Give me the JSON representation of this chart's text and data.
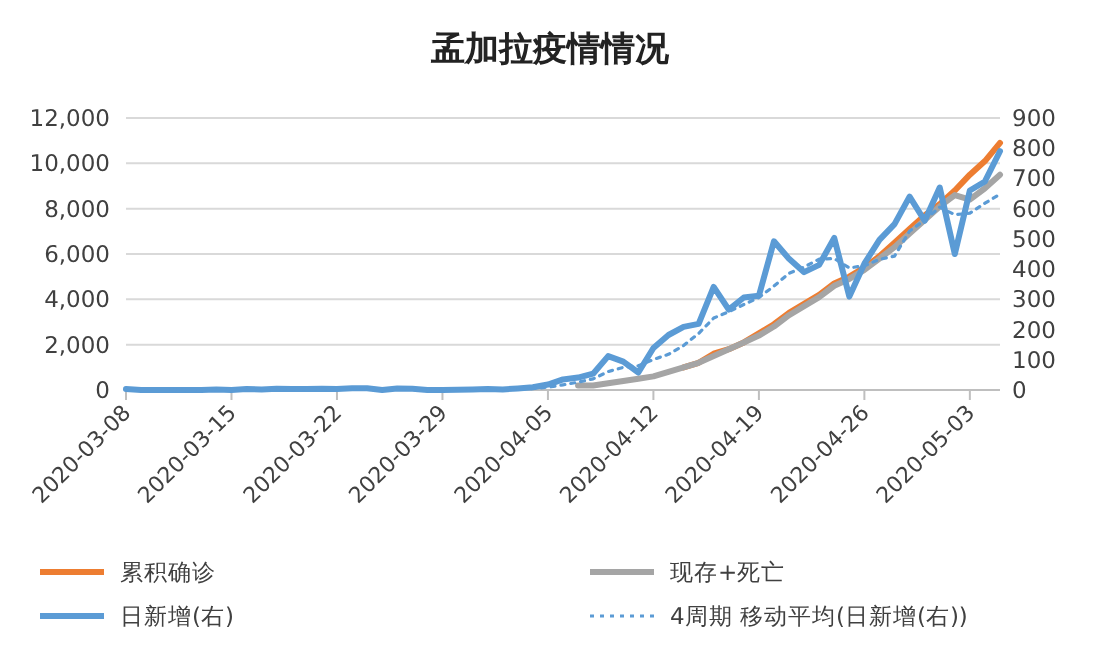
{
  "chart_data": {
    "type": "line",
    "title": "孟加拉疫情情况",
    "x": [
      "2020-03-08",
      "2020-03-09",
      "2020-03-10",
      "2020-03-11",
      "2020-03-12",
      "2020-03-13",
      "2020-03-14",
      "2020-03-15",
      "2020-03-16",
      "2020-03-17",
      "2020-03-18",
      "2020-03-19",
      "2020-03-20",
      "2020-03-21",
      "2020-03-22",
      "2020-03-23",
      "2020-03-24",
      "2020-03-25",
      "2020-03-26",
      "2020-03-27",
      "2020-03-28",
      "2020-03-29",
      "2020-03-30",
      "2020-03-31",
      "2020-04-01",
      "2020-04-02",
      "2020-04-03",
      "2020-04-04",
      "2020-04-05",
      "2020-04-06",
      "2020-04-07",
      "2020-04-08",
      "2020-04-09",
      "2020-04-10",
      "2020-04-11",
      "2020-04-12",
      "2020-04-13",
      "2020-04-14",
      "2020-04-15",
      "2020-04-16",
      "2020-04-17",
      "2020-04-18",
      "2020-04-19",
      "2020-04-20",
      "2020-04-21",
      "2020-04-22",
      "2020-04-23",
      "2020-04-24",
      "2020-04-25",
      "2020-04-26",
      "2020-04-27",
      "2020-04-28",
      "2020-04-29",
      "2020-04-30",
      "2020-05-01",
      "2020-05-02",
      "2020-05-03",
      "2020-05-04",
      "2020-05-05"
    ],
    "series": [
      {
        "name": "累积确诊",
        "color": "#ed7d31",
        "values": [
          null,
          null,
          null,
          null,
          null,
          null,
          null,
          null,
          null,
          null,
          null,
          null,
          null,
          null,
          null,
          null,
          null,
          null,
          null,
          null,
          null,
          null,
          null,
          null,
          null,
          null,
          null,
          null,
          null,
          null,
          null,
          null,
          null,
          null,
          null,
          null,
          null,
          1000,
          1200,
          1600,
          1800,
          2100,
          2500,
          2900,
          3400,
          3800,
          4200,
          4700,
          5000,
          5400,
          5900,
          6500,
          7100,
          7700,
          8200,
          8800,
          9500,
          10100,
          10900
        ]
      },
      {
        "name": "现存+死亡",
        "color": "#a5a5a5",
        "values": [
          null,
          null,
          null,
          null,
          null,
          null,
          null,
          null,
          null,
          null,
          null,
          null,
          null,
          null,
          null,
          null,
          null,
          null,
          null,
          null,
          null,
          null,
          null,
          null,
          null,
          null,
          null,
          null,
          null,
          null,
          200,
          200,
          300,
          400,
          500,
          600,
          800,
          1000,
          1200,
          1500,
          1800,
          2100,
          2400,
          2800,
          3300,
          3700,
          4100,
          4600,
          4900,
          5300,
          5800,
          6300,
          6900,
          7500,
          8100,
          8600,
          8400,
          8900,
          9500
        ]
      },
      {
        "name": "日新增(右)",
        "color": "#5b9bd5",
        "axis": "y2",
        "values": [
          3,
          0,
          0,
          0,
          0,
          0,
          2,
          0,
          3,
          2,
          4,
          3,
          3,
          4,
          3,
          6,
          6,
          0,
          5,
          4,
          0,
          0,
          1,
          2,
          3,
          2,
          5,
          9,
          18,
          35,
          41,
          54,
          112,
          94,
          58,
          139,
          182,
          209,
          219,
          341,
          266,
          306,
          312,
          492,
          434,
          390,
          414,
          503,
          309,
          418,
          497,
          549,
          640,
          560,
          670,
          450,
          660,
          690,
          790
        ]
      },
      {
        "name": "4周期 移动平均(日新增(右))",
        "color": "#5b9bd5",
        "axis": "y2",
        "line_style": "dotted",
        "values": [
          null,
          null,
          null,
          1,
          0,
          0,
          1,
          1,
          1,
          2,
          2,
          3,
          3,
          4,
          3,
          4,
          5,
          4,
          4,
          4,
          2,
          2,
          1,
          1,
          2,
          2,
          3,
          5,
          9,
          17,
          26,
          37,
          61,
          75,
          80,
          101,
          118,
          147,
          187,
          238,
          259,
          283,
          306,
          344,
          386,
          407,
          433,
          435,
          404,
          411,
          432,
          443,
          526,
          562,
          605,
          580,
          585,
          618,
          648
        ]
      }
    ],
    "xlim": [
      "2020-03-08",
      "2020-05-05"
    ],
    "xticks": [
      "2020-03-08",
      "2020-03-15",
      "2020-03-22",
      "2020-03-29",
      "2020-04-05",
      "2020-04-12",
      "2020-04-19",
      "2020-04-26",
      "2020-05-03"
    ],
    "ylim": [
      0,
      12000
    ],
    "yticks": [
      {
        "value": 0,
        "label": "0"
      },
      {
        "value": 2000,
        "label": "2,000"
      },
      {
        "value": 4000,
        "label": "4,000"
      },
      {
        "value": 6000,
        "label": "6,000"
      },
      {
        "value": 8000,
        "label": "8,000"
      },
      {
        "value": 10000,
        "label": "10,000"
      },
      {
        "value": 12000,
        "label": "12,000"
      }
    ],
    "y2lim": [
      0,
      900
    ],
    "y2ticks": [
      0,
      100,
      200,
      300,
      400,
      500,
      600,
      700,
      800,
      900
    ],
    "grid": "y",
    "legend": "bottom",
    "line_style": "solid",
    "marker": "none"
  }
}
